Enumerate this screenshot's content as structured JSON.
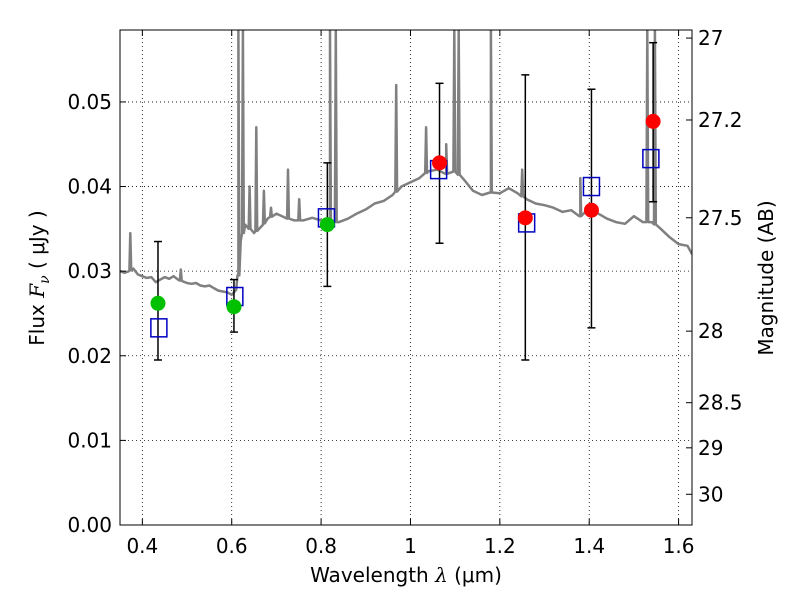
{
  "chart_data": {
    "type": "scatter",
    "title": "",
    "xlabel": {
      "prefix": "Wavelength  ",
      "var": "λ",
      "suffix": " (μm)"
    },
    "ylabel": {
      "prefix": "Flux  ",
      "var": "F",
      "sub": "ν",
      "suffix": "  ( μJy )"
    },
    "ylabel_right": "Magnitude (AB)",
    "xlim": [
      0.35,
      1.63
    ],
    "ylim": [
      0.0,
      0.0585
    ],
    "xticks": [
      0.4,
      0.6,
      0.8,
      1.0,
      1.2,
      1.4,
      1.6
    ],
    "xtick_labels": [
      "0.4",
      "0.6",
      "0.8",
      "1",
      "1.2",
      "1.4",
      "1.6"
    ],
    "yticks": [
      0.0,
      0.01,
      0.02,
      0.03,
      0.04,
      0.05
    ],
    "ytick_labels": [
      "0.00",
      "0.01",
      "0.02",
      "0.03",
      "0.04",
      "0.05"
    ],
    "right_ticks": [
      {
        "mag": 27.0,
        "label": "27"
      },
      {
        "mag": 27.2,
        "label": "27.2"
      },
      {
        "mag": 27.5,
        "label": "27.5"
      },
      {
        "mag": 28.0,
        "label": "28"
      },
      {
        "mag": 28.5,
        "label": "28.5"
      },
      {
        "mag": 29.0,
        "label": "29"
      },
      {
        "mag": 30.0,
        "label": "30"
      }
    ],
    "grid": true,
    "colors": {
      "model": "#808080",
      "green": "#00c000",
      "red": "#ff0000",
      "box": "#0000c0",
      "error": "#000000"
    },
    "model_spectrum": {
      "name": "",
      "x": [
        0.35,
        0.36,
        0.37,
        0.38,
        0.39,
        0.4,
        0.41,
        0.42,
        0.43,
        0.44,
        0.45,
        0.46,
        0.47,
        0.48,
        0.49,
        0.5,
        0.51,
        0.52,
        0.53,
        0.54,
        0.55,
        0.56,
        0.57,
        0.58,
        0.59,
        0.6,
        0.61,
        0.615,
        0.62,
        0.63,
        0.65,
        0.67,
        0.68,
        0.7,
        0.72,
        0.74,
        0.76,
        0.78,
        0.8,
        0.82,
        0.84,
        0.86,
        0.88,
        0.9,
        0.92,
        0.94,
        0.96,
        0.98,
        1.0,
        1.02,
        1.04,
        1.06,
        1.08,
        1.1,
        1.12,
        1.14,
        1.16,
        1.18,
        1.2,
        1.22,
        1.24,
        1.26,
        1.28,
        1.3,
        1.32,
        1.34,
        1.36,
        1.38,
        1.4,
        1.42,
        1.44,
        1.46,
        1.48,
        1.5,
        1.52,
        1.54,
        1.56,
        1.58,
        1.6,
        1.62,
        1.63
      ],
      "y": [
        0.03,
        0.0298,
        0.03,
        0.0303,
        0.0296,
        0.0294,
        0.0292,
        0.0293,
        0.0287,
        0.029,
        0.0293,
        0.0291,
        0.0294,
        0.029,
        0.0288,
        0.0286,
        0.0285,
        0.0286,
        0.0283,
        0.0282,
        0.0283,
        0.028,
        0.0277,
        0.0276,
        0.0275,
        0.0272,
        0.0278,
        0.0295,
        0.0335,
        0.0355,
        0.0345,
        0.0355,
        0.0362,
        0.0368,
        0.0363,
        0.036,
        0.036,
        0.0363,
        0.036,
        0.0358,
        0.0358,
        0.0362,
        0.0368,
        0.0373,
        0.038,
        0.0383,
        0.039,
        0.04,
        0.0405,
        0.041,
        0.0418,
        0.042,
        0.0415,
        0.0418,
        0.0408,
        0.0395,
        0.039,
        0.0393,
        0.0392,
        0.0398,
        0.0392,
        0.0385,
        0.038,
        0.0378,
        0.0375,
        0.037,
        0.0372,
        0.0365,
        0.0375,
        0.0368,
        0.0362,
        0.0358,
        0.0356,
        0.0365,
        0.0358,
        0.0358,
        0.035,
        0.034,
        0.0332,
        0.033,
        0.032
      ],
      "emission_lines": [
        {
          "x": 0.373,
          "peak": 0.0345
        },
        {
          "x": 0.486,
          "peak": 0.0302
        },
        {
          "x": 0.615,
          "peak": 0.0585
        },
        {
          "x": 0.625,
          "peak": 0.0585
        },
        {
          "x": 0.64,
          "peak": 0.04
        },
        {
          "x": 0.655,
          "peak": 0.047
        },
        {
          "x": 0.672,
          "peak": 0.0395
        },
        {
          "x": 0.688,
          "peak": 0.0375
        },
        {
          "x": 0.726,
          "peak": 0.042
        },
        {
          "x": 0.751,
          "peak": 0.0385
        },
        {
          "x": 0.82,
          "peak": 0.0585
        },
        {
          "x": 0.833,
          "peak": 0.0585
        },
        {
          "x": 0.968,
          "peak": 0.052
        },
        {
          "x": 1.035,
          "peak": 0.047
        },
        {
          "x": 1.08,
          "peak": 0.045
        },
        {
          "x": 1.098,
          "peak": 0.0585
        },
        {
          "x": 1.108,
          "peak": 0.0585
        },
        {
          "x": 1.18,
          "peak": 0.0585
        },
        {
          "x": 1.25,
          "peak": 0.042
        },
        {
          "x": 1.38,
          "peak": 0.041
        },
        {
          "x": 1.53,
          "peak": 0.0585
        },
        {
          "x": 1.547,
          "peak": 0.0585
        }
      ]
    },
    "observed_points": [
      {
        "x": 0.435,
        "y": 0.0262,
        "yerr_lo": 0.0195,
        "yerr_hi": 0.0335,
        "color": "green"
      },
      {
        "x": 0.605,
        "y": 0.0258,
        "yerr_lo": 0.0228,
        "yerr_hi": 0.029,
        "color": "green"
      },
      {
        "x": 0.814,
        "y": 0.0355,
        "yerr_lo": 0.0282,
        "yerr_hi": 0.0428,
        "color": "green"
      },
      {
        "x": 1.065,
        "y": 0.0428,
        "yerr_lo": 0.0333,
        "yerr_hi": 0.0522,
        "color": "red"
      },
      {
        "x": 1.257,
        "y": 0.0363,
        "yerr_lo": 0.0195,
        "yerr_hi": 0.0532,
        "color": "red"
      },
      {
        "x": 1.405,
        "y": 0.0372,
        "yerr_lo": 0.0233,
        "yerr_hi": 0.0515,
        "color": "red"
      },
      {
        "x": 1.543,
        "y": 0.0477,
        "yerr_lo": 0.0382,
        "yerr_hi": 0.057,
        "color": "red"
      }
    ],
    "model_photometry": [
      {
        "x": 0.437,
        "y": 0.0233
      },
      {
        "x": 0.607,
        "y": 0.027
      },
      {
        "x": 0.812,
        "y": 0.0363
      },
      {
        "x": 1.063,
        "y": 0.042
      },
      {
        "x": 1.26,
        "y": 0.0357
      },
      {
        "x": 1.405,
        "y": 0.04
      },
      {
        "x": 1.538,
        "y": 0.0433
      }
    ]
  }
}
